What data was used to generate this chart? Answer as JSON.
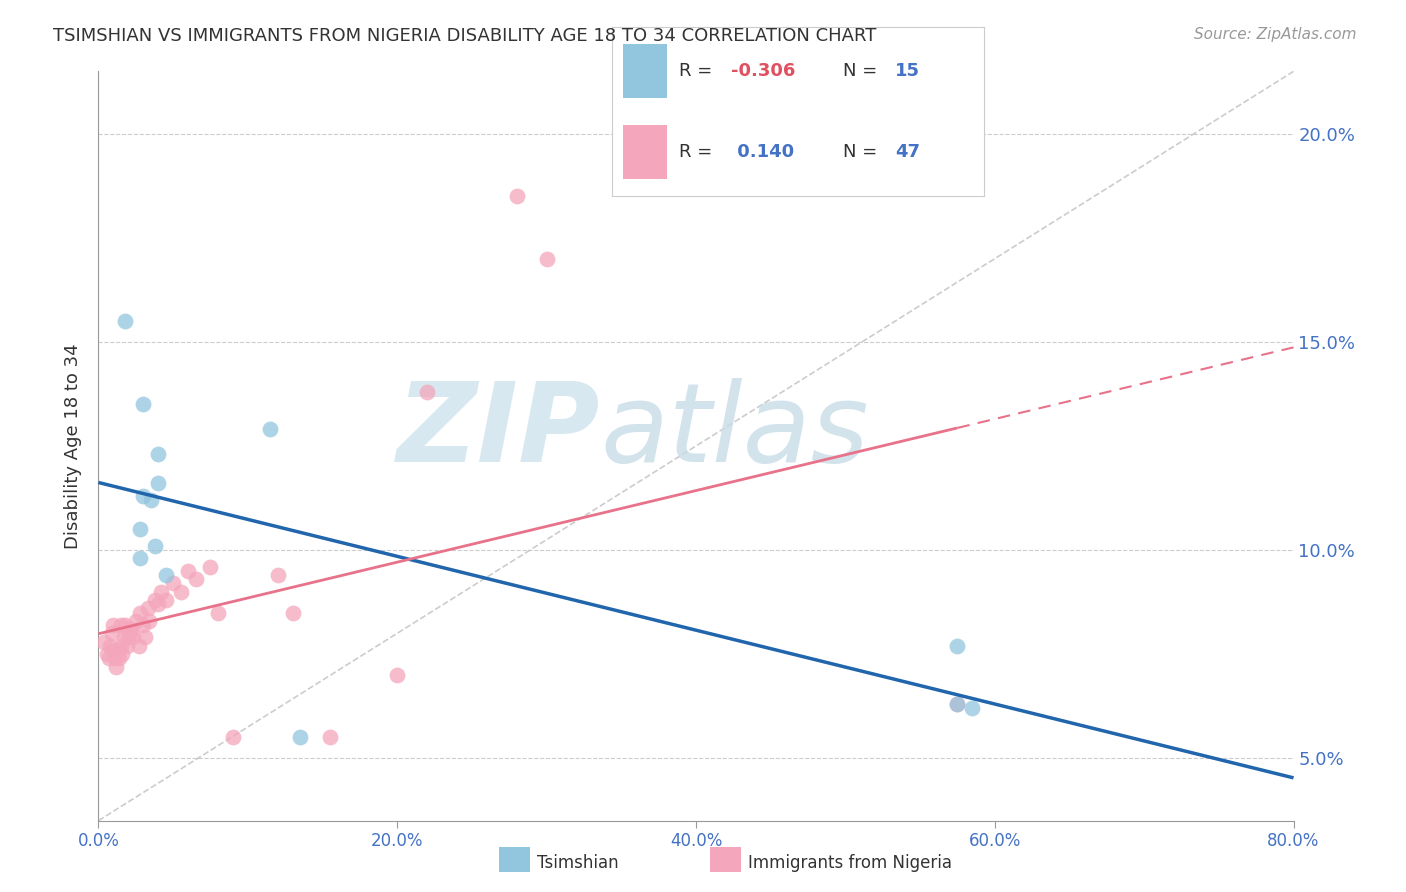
{
  "title": "TSIMSHIAN VS IMMIGRANTS FROM NIGERIA DISABILITY AGE 18 TO 34 CORRELATION CHART",
  "source": "Source: ZipAtlas.com",
  "ylabel": "Disability Age 18 to 34",
  "xlim": [
    0.0,
    0.8
  ],
  "ylim": [
    0.035,
    0.215
  ],
  "blue_color": "#92c5de",
  "pink_color": "#f4a6bc",
  "trend_blue": "#2166ac",
  "trend_pink": "#e8728a",
  "watermark_zip": "ZIP",
  "watermark_atlas": "atlas",
  "blue_points_x": [
    0.018,
    0.03,
    0.04,
    0.04,
    0.03,
    0.035,
    0.028,
    0.038,
    0.028,
    0.045,
    0.115,
    0.575,
    0.575,
    0.585,
    0.135
  ],
  "blue_points_y": [
    0.155,
    0.135,
    0.123,
    0.116,
    0.113,
    0.112,
    0.105,
    0.101,
    0.098,
    0.094,
    0.129,
    0.077,
    0.063,
    0.062,
    0.055
  ],
  "pink_points_x": [
    0.004,
    0.006,
    0.007,
    0.008,
    0.009,
    0.01,
    0.01,
    0.011,
    0.012,
    0.013,
    0.014,
    0.015,
    0.015,
    0.016,
    0.017,
    0.018,
    0.019,
    0.02,
    0.021,
    0.022,
    0.023,
    0.025,
    0.027,
    0.028,
    0.03,
    0.031,
    0.033,
    0.034,
    0.038,
    0.04,
    0.042,
    0.045,
    0.05,
    0.055,
    0.06,
    0.065,
    0.075,
    0.08,
    0.09,
    0.12,
    0.13,
    0.155,
    0.2,
    0.22,
    0.28,
    0.3,
    0.575
  ],
  "pink_points_y": [
    0.078,
    0.075,
    0.074,
    0.077,
    0.08,
    0.082,
    0.076,
    0.074,
    0.072,
    0.076,
    0.074,
    0.077,
    0.082,
    0.075,
    0.079,
    0.082,
    0.077,
    0.079,
    0.08,
    0.081,
    0.079,
    0.083,
    0.077,
    0.085,
    0.082,
    0.079,
    0.086,
    0.083,
    0.088,
    0.087,
    0.09,
    0.088,
    0.092,
    0.09,
    0.095,
    0.093,
    0.096,
    0.085,
    0.055,
    0.094,
    0.085,
    0.055,
    0.07,
    0.138,
    0.185,
    0.17,
    0.063
  ],
  "background_color": "#ffffff",
  "grid_color": "#cccccc",
  "legend_text_color": "#333333",
  "legend_value_color": "#4472c4",
  "tick_color": "#4472c4",
  "axis_color": "#999999"
}
